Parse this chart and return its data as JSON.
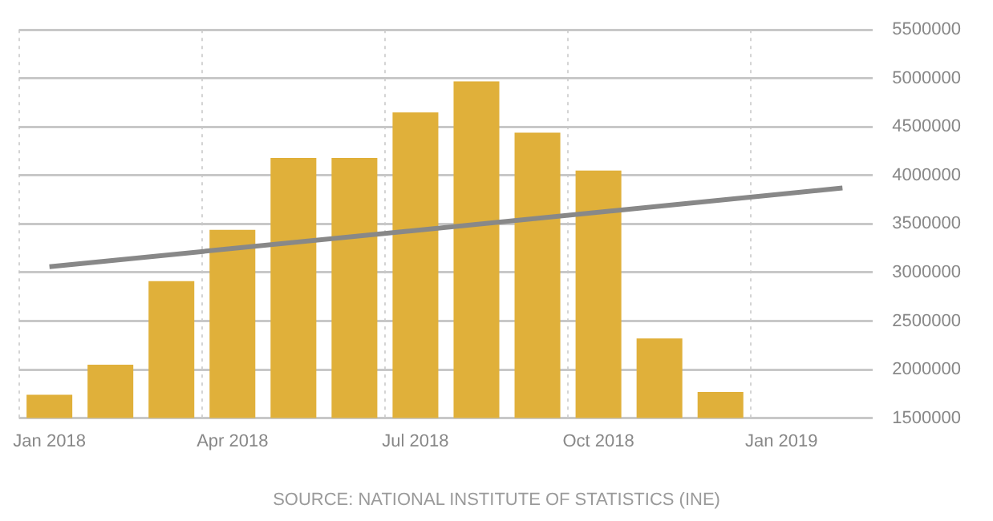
{
  "chart_data": {
    "type": "bar",
    "categories": [
      "Jan 2018",
      null,
      null,
      "Apr 2018",
      null,
      null,
      "Jul 2018",
      null,
      null,
      "Oct 2018",
      null,
      null,
      "Jan 2019",
      null
    ],
    "series": [
      {
        "color": "#e0b03a",
        "values": [
          1740000,
          2050000,
          2910000,
          3440000,
          4180000,
          4180000,
          4650000,
          4970000,
          4440000,
          4050000,
          2320000,
          1770000,
          null,
          null
        ]
      },
      {
        "type": "line",
        "color": "#888888",
        "values": [
          3060000,
          null,
          null,
          null,
          null,
          null,
          null,
          null,
          null,
          null,
          null,
          null,
          null,
          3870000
        ]
      }
    ],
    "ylim": [
      1500000,
      5500000
    ],
    "yticks": [
      1500000,
      2000000,
      2500000,
      3000000,
      3500000,
      4000000,
      4500000,
      5000000,
      5500000
    ],
    "grid": true,
    "marker": "none",
    "annotations": [
      "SOURCE: NATIONAL INSTITUTE OF STATISTICS (INE)"
    ]
  }
}
